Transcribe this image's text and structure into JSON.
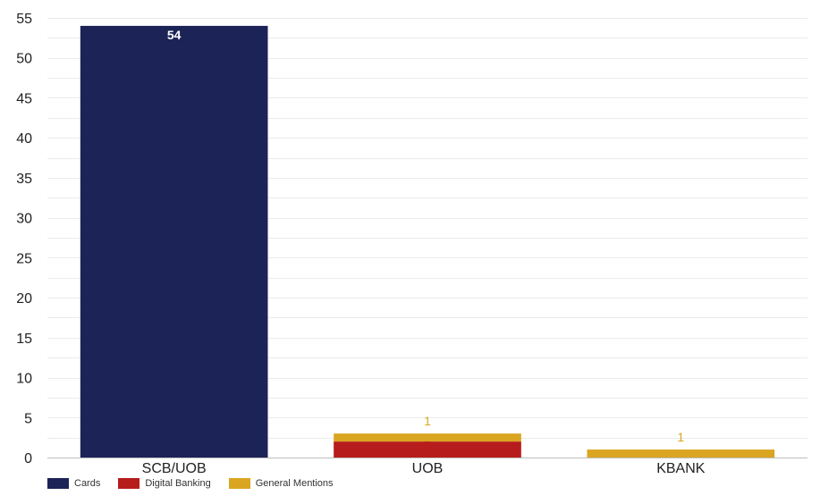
{
  "chart_data": {
    "type": "bar",
    "stacked": true,
    "categories": [
      "SCB/UOB",
      "UOB",
      "KBANK"
    ],
    "series": [
      {
        "name": "Cards",
        "color": "#1c2357",
        "values": [
          54,
          0,
          0
        ]
      },
      {
        "name": "Digital Banking",
        "color": "#b71c1c",
        "values": [
          0,
          2,
          0
        ]
      },
      {
        "name": "General Mentions",
        "color": "#daa520",
        "values": [
          0,
          1,
          1
        ]
      }
    ],
    "yticks": [
      0,
      5,
      10,
      15,
      20,
      25,
      30,
      35,
      40,
      45,
      50,
      55
    ],
    "ylim": [
      0,
      55
    ],
    "grid": true,
    "legend_position": "bottom-left",
    "data_label_colors": [
      "#ffffff",
      "#b71c1c",
      "#daa520"
    ]
  }
}
